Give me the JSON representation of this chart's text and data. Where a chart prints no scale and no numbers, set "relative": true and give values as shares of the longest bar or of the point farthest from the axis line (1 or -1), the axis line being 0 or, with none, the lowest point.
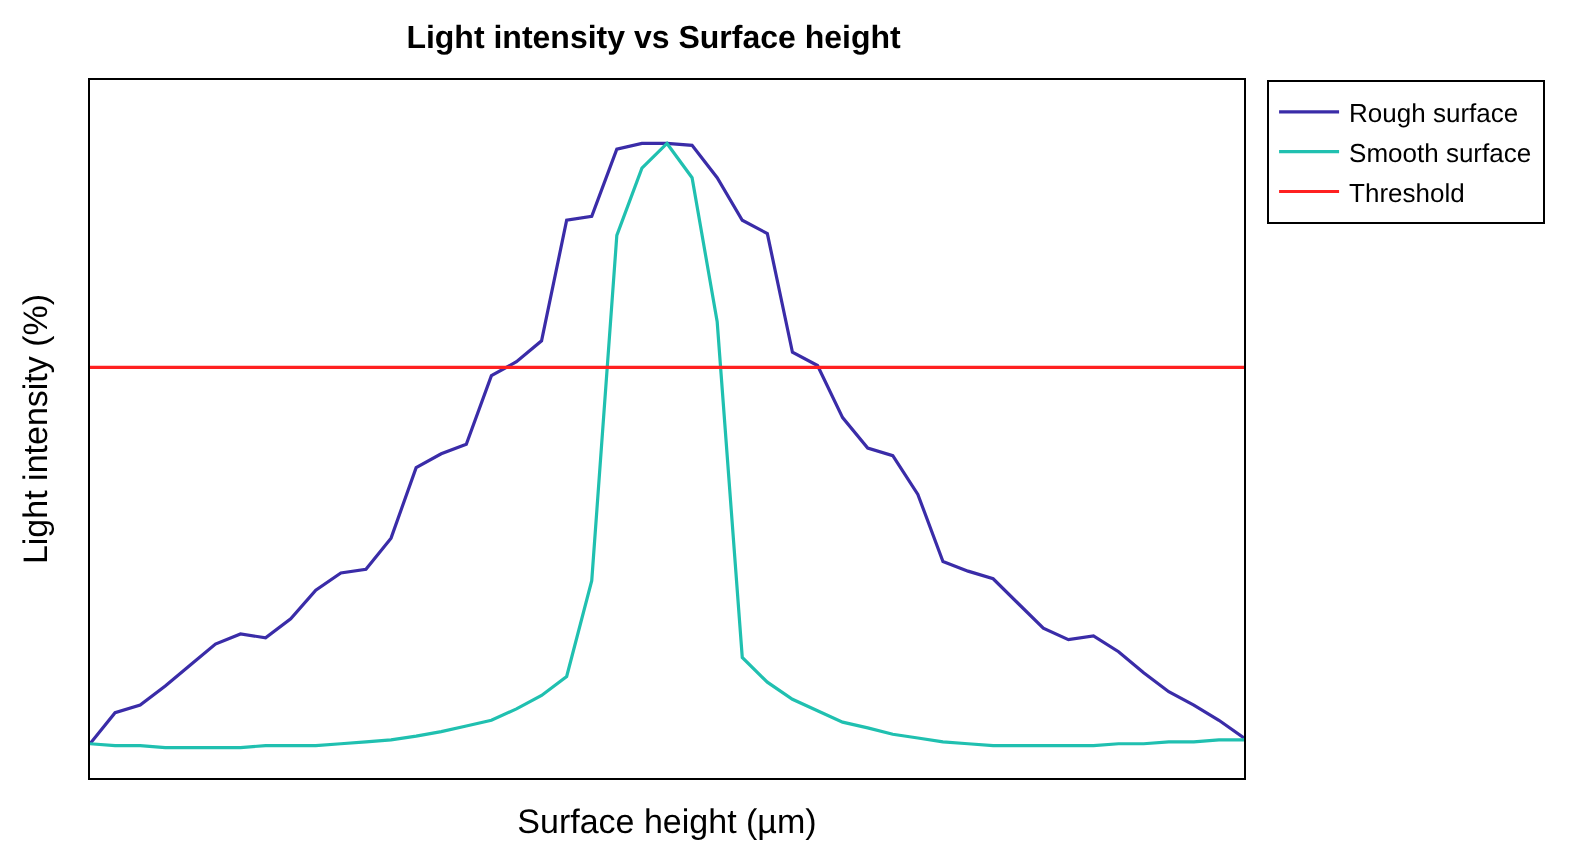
{
  "chart_data": {
    "type": "line",
    "title": "Light intensity vs Surface height",
    "xlabel": "Surface height (µm)",
    "ylabel": "Light intensity (%)",
    "relative": true,
    "categories": [
      null,
      null,
      null,
      null,
      null,
      null,
      null,
      null,
      null,
      null,
      null,
      null,
      null,
      null,
      null,
      null,
      null,
      null,
      null,
      null,
      null,
      null,
      null,
      null,
      null,
      null,
      null,
      null,
      null,
      null,
      null,
      null,
      null,
      null,
      null,
      null,
      null,
      null,
      null,
      null,
      null,
      null,
      null,
      null,
      null,
      null,
      null
    ],
    "tick_labels": false,
    "legend": "top right",
    "line_style": "solid",
    "series": [
      {
        "name": "Rough surface",
        "color": "#3a2ca8",
        "values": [
          0.054,
          0.103,
          0.115,
          0.145,
          0.178,
          0.211,
          0.227,
          0.221,
          0.251,
          0.296,
          0.323,
          0.329,
          0.378,
          0.489,
          0.511,
          0.526,
          0.634,
          0.656,
          0.689,
          0.879,
          0.885,
          0.991,
          1,
          1,
          0.997,
          0.946,
          0.879,
          0.858,
          0.671,
          0.65,
          0.568,
          0.52,
          0.508,
          0.447,
          0.341,
          0.326,
          0.314,
          0.275,
          0.236,
          0.218,
          0.224,
          0.199,
          0.166,
          0.136,
          0.115,
          0.091,
          0.063
        ]
      },
      {
        "name": "Smooth surface",
        "color": "#20c0b0",
        "values": [
          0.054,
          0.051,
          0.051,
          0.048,
          0.048,
          0.048,
          0.048,
          0.051,
          0.051,
          0.051,
          0.054,
          0.057,
          0.06,
          0.066,
          0.073,
          0.082,
          0.091,
          0.109,
          0.13,
          0.16,
          0.311,
          0.855,
          0.961,
          1,
          0.946,
          0.719,
          0.19,
          0.151,
          0.124,
          0.106,
          0.088,
          0.079,
          0.069,
          0.063,
          0.057,
          0.054,
          0.051,
          0.051,
          0.051,
          0.051,
          0.051,
          0.054,
          0.054,
          0.057,
          0.057,
          0.06,
          0.06
        ]
      },
      {
        "name": "Threshold",
        "color": "#ff2020",
        "values": [
          0.647,
          0.647,
          0.647,
          0.647,
          0.647,
          0.647,
          0.647,
          0.647,
          0.647,
          0.647,
          0.647,
          0.647,
          0.647,
          0.647,
          0.647,
          0.647,
          0.647,
          0.647,
          0.647,
          0.647,
          0.647,
          0.647,
          0.647,
          0.647,
          0.647,
          0.647,
          0.647,
          0.647,
          0.647,
          0.647,
          0.647,
          0.647,
          0.647,
          0.647,
          0.647,
          0.647,
          0.647,
          0.647,
          0.647,
          0.647,
          0.647,
          0.647,
          0.647,
          0.647,
          0.647,
          0.647,
          0.647
        ]
      }
    ]
  }
}
